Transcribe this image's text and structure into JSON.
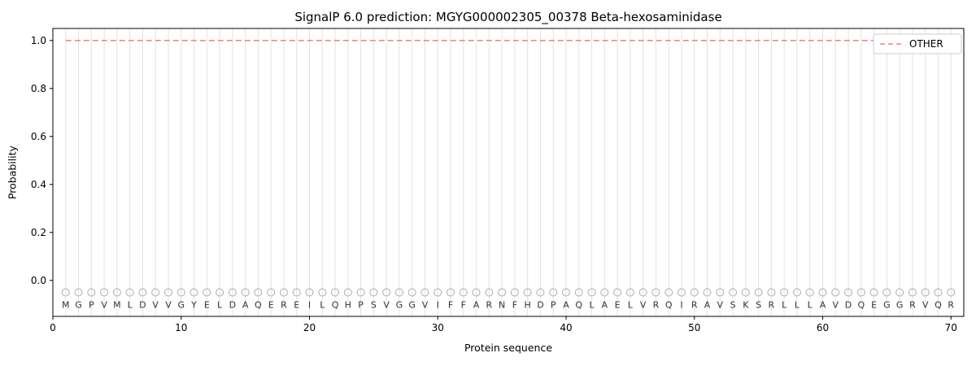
{
  "colors": {
    "other_line": "#f28080",
    "grid": "#e2e2e2",
    "marker": "#ababab",
    "letter": "#333333",
    "axis": "#000000",
    "legend_border": "#cccccc"
  },
  "chart_data": {
    "type": "line",
    "title": "SignalP 6.0 prediction: MGYG000002305_00378 Beta-hexosaminidase",
    "xlabel": "Protein sequence",
    "ylabel": "Probability",
    "xlim": [
      0,
      71
    ],
    "ylim": [
      -0.15,
      1.05
    ],
    "xticks": [
      0,
      10,
      20,
      30,
      40,
      50,
      60,
      70
    ],
    "yticks": [
      0.0,
      0.2,
      0.4,
      0.6,
      0.8,
      1.0
    ],
    "grid": "vertical-line-per-residue",
    "sequence": "MGPVMLDVVGYELDAQEREILQHPSVGGVIFFARNFHDPAQLAELVRQIRAVSKSRLLLAVDQEGGRVQR",
    "marker_y": -0.05,
    "letter_y": -0.1,
    "series": [
      {
        "name": "OTHER",
        "style": "dashed",
        "values": [
          1.0,
          1.0,
          1.0,
          1.0,
          1.0,
          1.0,
          1.0,
          1.0,
          1.0,
          1.0,
          1.0,
          1.0,
          1.0,
          1.0,
          1.0,
          1.0,
          1.0,
          1.0,
          1.0,
          1.0,
          1.0,
          1.0,
          1.0,
          1.0,
          1.0,
          1.0,
          1.0,
          1.0,
          1.0,
          1.0,
          1.0,
          1.0,
          1.0,
          1.0,
          1.0,
          1.0,
          1.0,
          1.0,
          1.0,
          1.0,
          1.0,
          1.0,
          1.0,
          1.0,
          1.0,
          1.0,
          1.0,
          1.0,
          1.0,
          1.0,
          1.0,
          1.0,
          1.0,
          1.0,
          1.0,
          1.0,
          1.0,
          1.0,
          1.0,
          1.0,
          1.0,
          1.0,
          1.0,
          1.0,
          1.0,
          1.0,
          1.0,
          1.0,
          1.0,
          1.0
        ]
      }
    ],
    "legend": {
      "position": "upper right",
      "entries": [
        {
          "label": "OTHER",
          "color": "#f28080",
          "style": "dashed"
        }
      ]
    }
  }
}
